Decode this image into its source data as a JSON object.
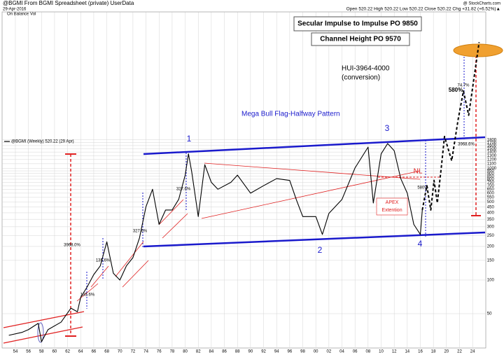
{
  "chart_data": {
    "type": "line",
    "log_scale": true,
    "grid": true,
    "header": {
      "symbol": "@BGMI From BGMI Spreadsheet (private) UserData",
      "date": "29-Apr-2016",
      "indicator": "On Balance Vol",
      "quote": "Open 520.22  High 520.22  Low 520.22  Close 520.22  Chg +31.82 (+6.52%)▲",
      "source": "@ StockCharts.com"
    },
    "annotations": {
      "secular": "Secular Impulse to Impulse PO  9850",
      "channel": "Channel Height PO 9570",
      "hui": "HUI-3964-4000",
      "conversion": "(conversion)",
      "pattern": "Mega Bull Flag-Halfway Pattern",
      "wave1": "1",
      "wave2": "2",
      "wave3": "3",
      "wave4": "4",
      "nl": "NL",
      "apex": "APEX",
      "extention": "Extention",
      "pct_3968_0": "3968.0%",
      "pct_327_a": "327.6%",
      "pct_327_b": "327.6%",
      "pct_135_a": "135.6%",
      "pct_135_b": "135.6%",
      "pct_580_big": "580%",
      "pct_74_7": "74.7%",
      "pct_580_small": "580%",
      "pct_3968_6": "3968.6%"
    },
    "x": [
      1953,
      1955,
      1956,
      1957.5,
      1958,
      1959,
      1961,
      1962.5,
      1963.5,
      1964,
      1965,
      1966,
      1967,
      1968,
      1969,
      1970,
      1971,
      1972,
      1973,
      1974,
      1975,
      1976,
      1977,
      1978,
      1979,
      1980,
      1980.5,
      1981,
      1982,
      1983,
      1984,
      1985,
      1987,
      1988,
      1990,
      1992,
      1994,
      1996,
      1997,
      1998,
      2000,
      2001,
      2002,
      2004,
      2006,
      2008,
      2008.8,
      2010,
      2011,
      2012,
      2013,
      2014,
      2015,
      2016,
      2016.3,
      2017,
      2017.6,
      2018.1,
      2018.6,
      2019.2,
      2019.7,
      2020.8,
      2021.8,
      2022.6,
      2023.4,
      2025
    ],
    "series": [
      {
        "name": "@BGMI (Weekly) 520.22 (29 Apr)",
        "color": "#000000",
        "values": [
          32,
          34,
          36,
          41,
          28,
          36,
          42,
          56,
          52,
          70,
          87,
          112,
          134,
          220,
          115,
          100,
          134,
          159,
          238,
          455,
          650,
          315,
          424,
          424,
          527,
          870,
          1350,
          930,
          370,
          1080,
          750,
          650,
          750,
          870,
          600,
          700,
          810,
          780,
          527,
          370,
          370,
          256,
          395,
          527,
          1010,
          1550,
          490,
          1350,
          1670,
          1440,
          810,
          600,
          315,
          256,
          424,
          null,
          null,
          null,
          null,
          null,
          null,
          null,
          null,
          null,
          null,
          null
        ]
      },
      {
        "color": "#000000",
        "dashed": true,
        "values": [
          null,
          null,
          null,
          null,
          null,
          null,
          null,
          null,
          null,
          null,
          null,
          null,
          null,
          null,
          null,
          null,
          null,
          null,
          null,
          null,
          null,
          null,
          null,
          null,
          null,
          null,
          null,
          null,
          null,
          null,
          null,
          null,
          null,
          null,
          null,
          null,
          null,
          null,
          null,
          null,
          null,
          null,
          null,
          null,
          null,
          null,
          null,
          null,
          null,
          null,
          null,
          null,
          null,
          null,
          424,
          700,
          424,
          780,
          490,
          1010,
          1930,
          1170,
          2770,
          4930,
          2990,
          13500
        ]
      }
    ],
    "xlim": [
      1952,
      2026
    ],
    "xticks": [
      {
        "value": 1954,
        "label": "54"
      },
      {
        "value": 1956,
        "label": "56"
      },
      {
        "value": 1958,
        "label": "58"
      },
      {
        "value": 1960,
        "label": "60"
      },
      {
        "value": 1962,
        "label": "62"
      },
      {
        "value": 1964,
        "label": "64"
      },
      {
        "value": 1966,
        "label": "66"
      },
      {
        "value": 1968,
        "label": "68"
      },
      {
        "value": 1970,
        "label": "70"
      },
      {
        "value": 1972,
        "label": "72"
      },
      {
        "value": 1974,
        "label": "74"
      },
      {
        "value": 1976,
        "label": "76"
      },
      {
        "value": 1978,
        "label": "78"
      },
      {
        "value": 1980,
        "label": "80"
      },
      {
        "value": 1982,
        "label": "82"
      },
      {
        "value": 1984,
        "label": "84"
      },
      {
        "value": 1986,
        "label": "86"
      },
      {
        "value": 1988,
        "label": "88"
      },
      {
        "value": 1990,
        "label": "90"
      },
      {
        "value": 1992,
        "label": "92"
      },
      {
        "value": 1994,
        "label": "94"
      },
      {
        "value": 1996,
        "label": "96"
      },
      {
        "value": 1998,
        "label": "98"
      },
      {
        "value": 2000,
        "label": "00"
      },
      {
        "value": 2002,
        "label": "02"
      },
      {
        "value": 2004,
        "label": "04"
      },
      {
        "value": 2006,
        "label": "06"
      },
      {
        "value": 2008,
        "label": "08"
      },
      {
        "value": 2010,
        "label": "10"
      },
      {
        "value": 2012,
        "label": "12"
      },
      {
        "value": 2014,
        "label": "14"
      },
      {
        "value": 2016,
        "label": "16"
      },
      {
        "value": 2018,
        "label": "18"
      },
      {
        "value": 2020,
        "label": "20"
      },
      {
        "value": 2022,
        "label": "22"
      },
      {
        "value": 2024,
        "label": "24"
      }
    ],
    "ylim": [
      25,
      25000
    ],
    "yticks": [
      50,
      100,
      150,
      200,
      250,
      300,
      350,
      400,
      450,
      500,
      550,
      600,
      650,
      700,
      750,
      800,
      850,
      900,
      950,
      1000,
      1100,
      1200,
      1300,
      1400,
      1500,
      1600,
      1700,
      1800
    ]
  }
}
